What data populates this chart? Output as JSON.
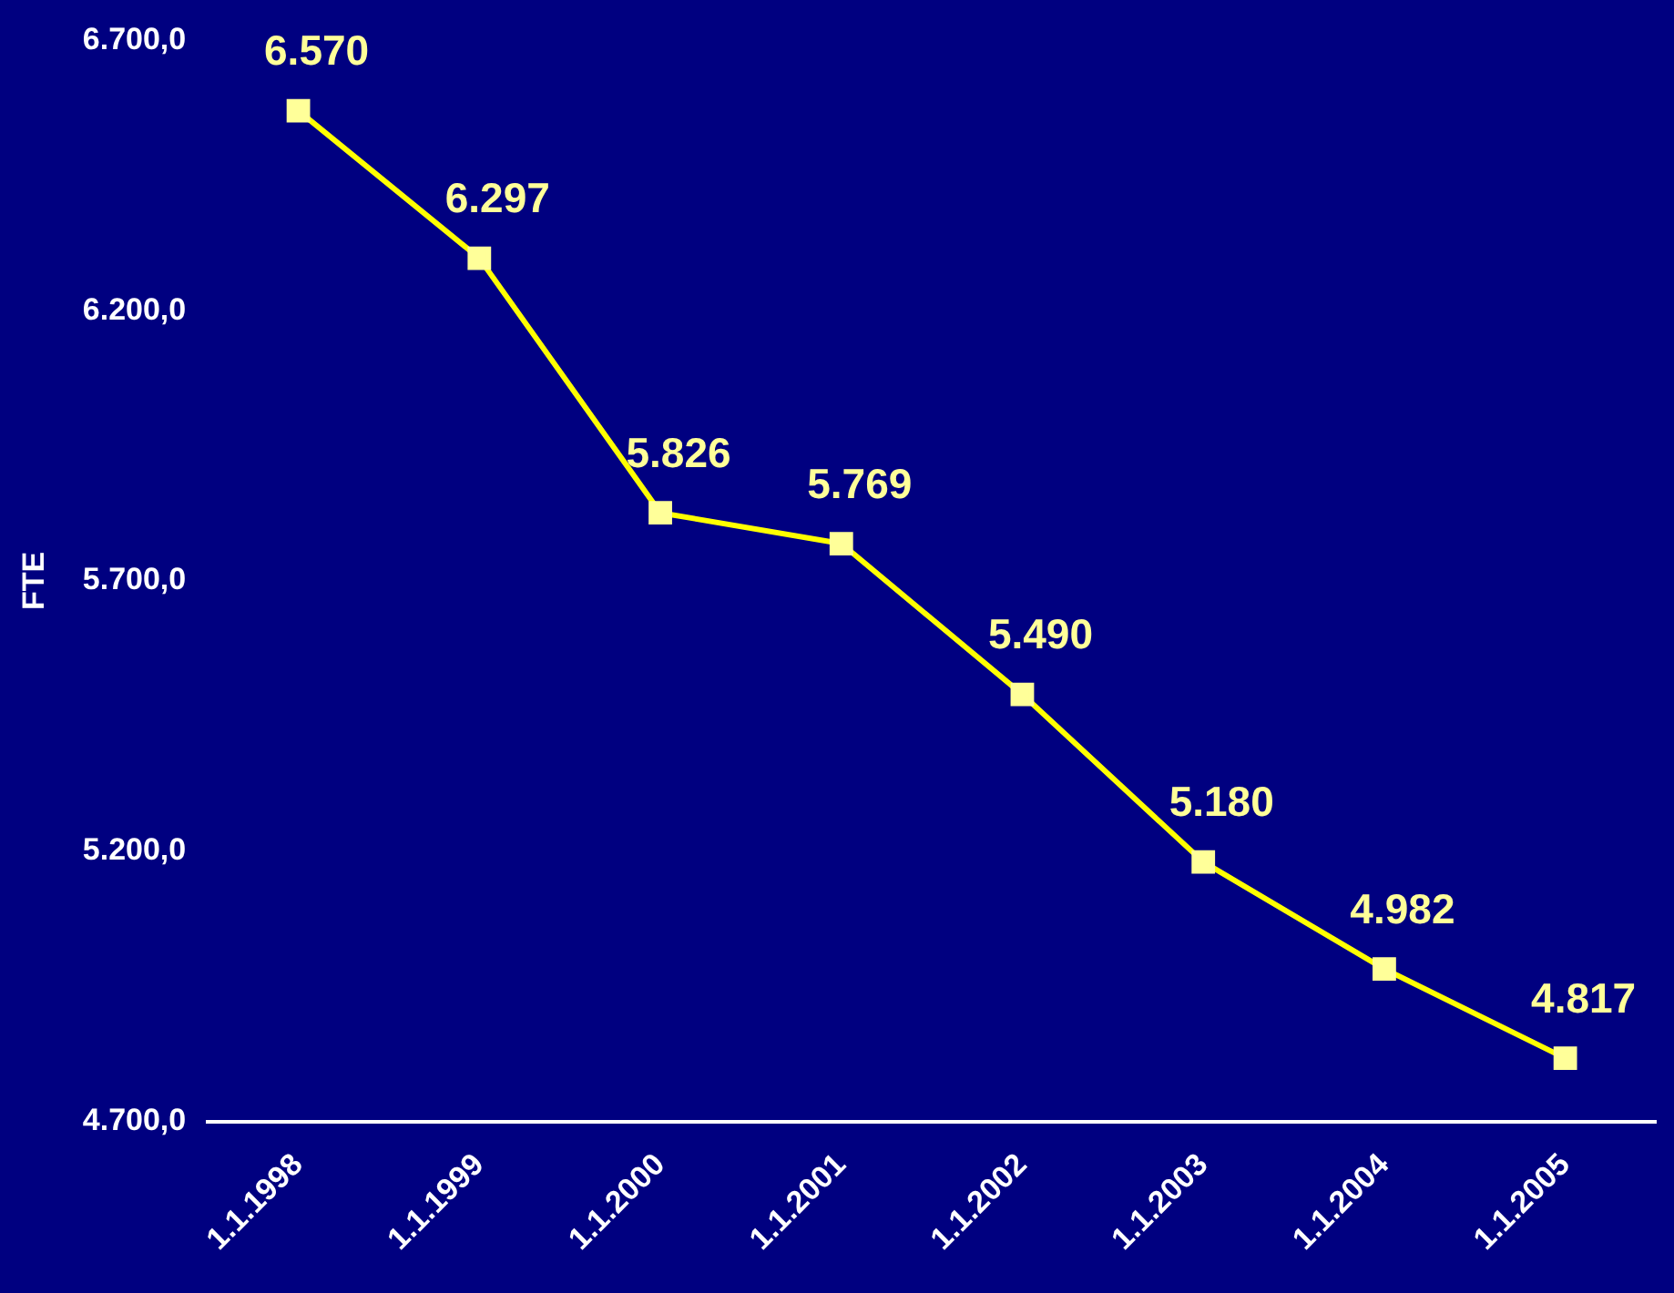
{
  "chart_data": {
    "type": "line",
    "ylabel": "FTE",
    "categories": [
      "1.1.1998",
      "1.1.1999",
      "1.1.2000",
      "1.1.2001",
      "1.1.2002",
      "1.1.2003",
      "1.1.2004",
      "1.1.2005"
    ],
    "series": [
      {
        "color": "#ffff00",
        "values": [
          6570,
          6297,
          5826,
          5769,
          5490,
          5180,
          4982,
          4817
        ],
        "value_labels": [
          "6.570",
          "6.297",
          "5.826",
          "5.769",
          "5.490",
          "5.180",
          "4.982",
          "4.817"
        ]
      }
    ],
    "ylim": [
      4700,
      6700
    ],
    "yticks": [
      {
        "value": 4700,
        "label": "4.700,0"
      },
      {
        "value": 5200,
        "label": "5.200,0"
      },
      {
        "value": 5700,
        "label": "5.700,0"
      },
      {
        "value": 6200,
        "label": "6.200,0"
      },
      {
        "value": 6700,
        "label": "6.700,0"
      }
    ],
    "grid": false,
    "legend": false,
    "marker": "square",
    "line_style": "solid"
  }
}
